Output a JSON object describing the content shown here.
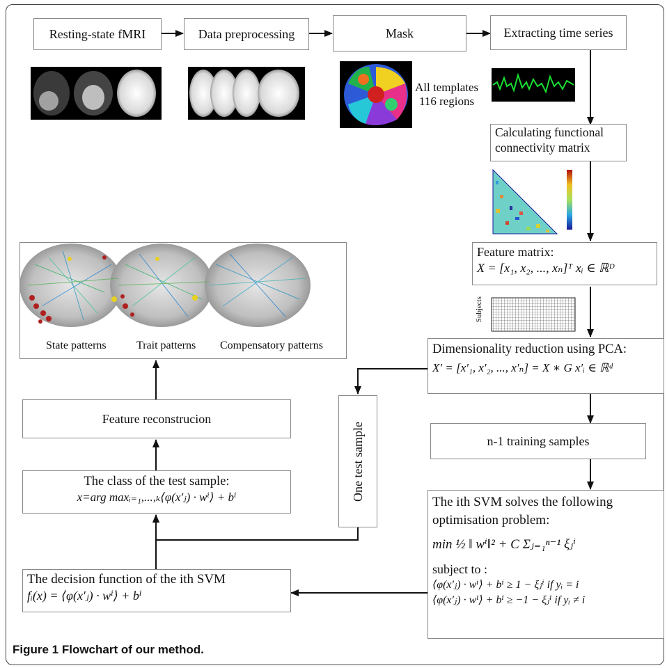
{
  "steps": {
    "resting": "Resting-state fMRI",
    "preprocess": "Data preprocessing",
    "mask": "Mask",
    "extract": "Extracting time series",
    "fc_line1": "Calculating functional",
    "fc_line2": "connectivity matrix",
    "feature_title": "Feature matrix:",
    "feature_eq": "X = [x₁, x₂, ..., xₙ]ᵀ    xᵢ ∈ ℝᴰ",
    "pca_title": "Dimensionality reduction using PCA:",
    "pca_eq": "X′ = [x′₁, x′₂, ..., x′ₙ] = X ∗ G    x′ᵢ ∈ ℝᵈ",
    "training": "n-1 training samples",
    "test": "One test sample",
    "svm_line1": "The ith SVM solves the following",
    "svm_line2": "optimisation problem:",
    "svm_obj": "min ½ ‖ wⁱ‖² + C Σⱼ₌₁ⁿ⁻¹ ξⱼⁱ",
    "svm_subject": "subject to :",
    "svm_c1": "⟨φ(x′ⱼ) · wⁱ⟩ + bⁱ ≥ 1 − ξⱼⁱ   if   yᵢ = i",
    "svm_c2": "⟨φ(x′ⱼ) · wⁱ⟩ + bⁱ ≥ −1 − ξⱼⁱ   if   yᵢ ≠ i",
    "decision_title": "The decision function of the ith SVM",
    "decision_eq": "fᵢ(x) = ⟨φ(x′ⱼ) · wⁱ⟩ + bⁱ",
    "class_title": "The class of the test sample:",
    "class_eq": "x=arg maxᵢ₌₁,...,ₖ⟨φ(x′ⱼ) · wⁱ⟩ + bⁱ",
    "reconstruction": "Feature reconstrucion"
  },
  "annotations": {
    "templates_line1": "All templates",
    "templates_line2": "116 regions",
    "subjects": "Subjects"
  },
  "patterns": {
    "state": "State patterns",
    "trait": "Trait patterns",
    "compensatory": "Compensatory patterns"
  },
  "caption": "Figure 1 Flowchart of our method."
}
